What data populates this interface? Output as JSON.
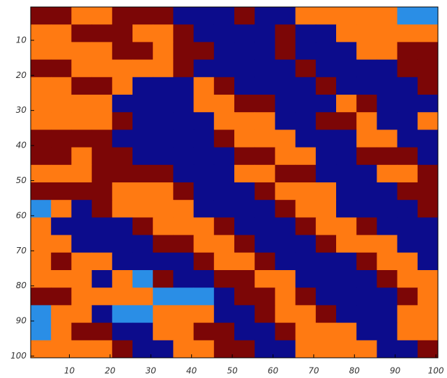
{
  "chart_data": {
    "type": "heatmap",
    "colors": [
      "#0c0c8c",
      "#2a8ee6",
      "#ff7a12",
      "#7c0606"
    ],
    "xlim": [
      0.5,
      100.5
    ],
    "ylim": [
      0.5,
      100.5
    ],
    "y_reversed": true,
    "xticks": [
      10,
      20,
      30,
      40,
      50,
      60,
      70,
      80,
      90,
      100
    ],
    "yticks": [
      10,
      20,
      30,
      40,
      50,
      60,
      70,
      80,
      90,
      100
    ],
    "z": [
      [
        3,
        3,
        2,
        2,
        3,
        3,
        3,
        0,
        0,
        0,
        3,
        0,
        0,
        2,
        2,
        2,
        2,
        2,
        1,
        1
      ],
      [
        2,
        2,
        3,
        3,
        3,
        2,
        2,
        3,
        0,
        0,
        0,
        0,
        3,
        0,
        0,
        2,
        2,
        2,
        2,
        2
      ],
      [
        2,
        2,
        2,
        2,
        3,
        3,
        2,
        3,
        3,
        0,
        0,
        0,
        3,
        0,
        0,
        0,
        2,
        2,
        3,
        3
      ],
      [
        3,
        3,
        2,
        2,
        2,
        2,
        2,
        3,
        0,
        0,
        0,
        0,
        0,
        3,
        0,
        0,
        0,
        0,
        3,
        3
      ],
      [
        2,
        2,
        3,
        3,
        2,
        0,
        0,
        0,
        2,
        3,
        0,
        0,
        0,
        0,
        3,
        0,
        0,
        0,
        0,
        3
      ],
      [
        2,
        2,
        2,
        2,
        0,
        0,
        0,
        0,
        2,
        2,
        3,
        3,
        0,
        0,
        0,
        2,
        3,
        0,
        0,
        0
      ],
      [
        2,
        2,
        2,
        2,
        3,
        0,
        0,
        0,
        0,
        2,
        2,
        2,
        0,
        0,
        3,
        3,
        2,
        0,
        0,
        2
      ],
      [
        3,
        3,
        3,
        3,
        0,
        0,
        0,
        0,
        0,
        3,
        2,
        2,
        2,
        0,
        0,
        0,
        2,
        2,
        0,
        0
      ],
      [
        3,
        3,
        2,
        3,
        3,
        0,
        0,
        0,
        0,
        0,
        3,
        3,
        2,
        2,
        0,
        0,
        3,
        3,
        3,
        0
      ],
      [
        2,
        2,
        2,
        3,
        3,
        3,
        3,
        0,
        0,
        0,
        2,
        2,
        3,
        3,
        0,
        0,
        0,
        2,
        2,
        3
      ],
      [
        3,
        3,
        3,
        3,
        2,
        2,
        2,
        3,
        0,
        0,
        0,
        3,
        2,
        2,
        2,
        0,
        0,
        0,
        3,
        3
      ],
      [
        1,
        2,
        0,
        3,
        2,
        2,
        2,
        2,
        0,
        0,
        0,
        0,
        3,
        2,
        2,
        0,
        0,
        0,
        0,
        3
      ],
      [
        2,
        0,
        0,
        0,
        0,
        3,
        2,
        2,
        2,
        3,
        0,
        0,
        0,
        3,
        2,
        2,
        3,
        0,
        0,
        0
      ],
      [
        2,
        2,
        0,
        0,
        0,
        0,
        3,
        3,
        2,
        2,
        3,
        0,
        0,
        0,
        3,
        2,
        2,
        2,
        0,
        0
      ],
      [
        2,
        3,
        2,
        2,
        0,
        0,
        0,
        0,
        3,
        2,
        2,
        3,
        0,
        0,
        0,
        0,
        3,
        2,
        2,
        0
      ],
      [
        2,
        2,
        2,
        0,
        2,
        1,
        3,
        0,
        0,
        3,
        3,
        2,
        2,
        0,
        0,
        0,
        0,
        3,
        2,
        2
      ],
      [
        3,
        3,
        2,
        2,
        2,
        2,
        1,
        1,
        1,
        0,
        3,
        3,
        2,
        3,
        0,
        0,
        0,
        0,
        3,
        2
      ],
      [
        1,
        2,
        2,
        0,
        1,
        1,
        2,
        2,
        2,
        0,
        0,
        3,
        2,
        2,
        3,
        0,
        0,
        0,
        2,
        2
      ],
      [
        1,
        2,
        3,
        3,
        0,
        0,
        2,
        2,
        3,
        3,
        0,
        0,
        3,
        2,
        2,
        2,
        0,
        0,
        2,
        2
      ],
      [
        2,
        2,
        2,
        2,
        3,
        0,
        0,
        2,
        2,
        3,
        3,
        0,
        0,
        2,
        2,
        2,
        2,
        0,
        0,
        3
      ]
    ]
  }
}
